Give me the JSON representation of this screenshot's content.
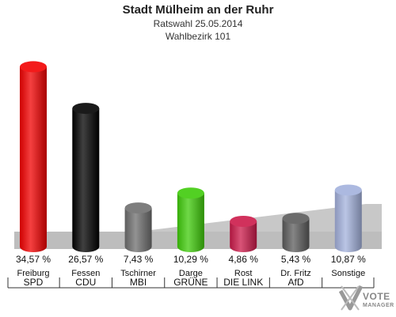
{
  "title": "Stadt Mülheim an der Ruhr",
  "subtitle1": "Ratswahl 25.05.2014",
  "subtitle2": "Wahlbezirk 101",
  "logo": {
    "line1": "VOTE",
    "line2": "MANAGER"
  },
  "chart_data": {
    "type": "bar",
    "title": "Stadt Mülheim an der Ruhr",
    "subtitle": [
      "Ratswahl 25.05.2014",
      "Wahlbezirk 101"
    ],
    "categories": [
      "SPD",
      "CDU",
      "MBI",
      "GRÜNE",
      "DIE LINKE",
      "AfD",
      "Sonstige"
    ],
    "candidates": [
      "Freiburg",
      "Fessen",
      "Tschirner",
      "Darge",
      "Rost",
      "Dr. Fritz",
      "Sonstige"
    ],
    "category_labels": [
      "SPD",
      "CDU",
      "MBI",
      "GRÜNE",
      "DIE LINK",
      "AfD",
      ""
    ],
    "values": [
      34.57,
      26.57,
      7.43,
      10.29,
      4.86,
      5.43,
      10.87
    ],
    "value_labels": [
      "34,57 %",
      "26,57 %",
      "7,43 %",
      "10,29 %",
      "4,86 %",
      "5,43 %",
      "10,87 %"
    ],
    "colors": [
      "#f20000",
      "#000000",
      "#6e6e6e",
      "#3fcb0a",
      "#cc1a4a",
      "#5c5c5c",
      "#a3b1dc"
    ],
    "ylim": [
      0,
      36
    ],
    "grid": false,
    "legend": "none"
  }
}
